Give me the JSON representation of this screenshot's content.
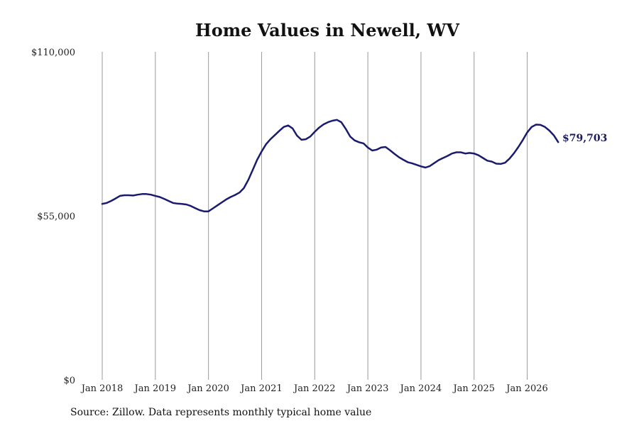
{
  "chart_data": {
    "type": "line",
    "title": "Home Values in Newell, WV",
    "xlabel": "",
    "ylabel": "",
    "ylim": [
      0,
      110000
    ],
    "y_ticks": [
      {
        "value": 0,
        "label": "$0"
      },
      {
        "value": 55000,
        "label": "$55,000"
      },
      {
        "value": 110000,
        "label": "$110,000"
      }
    ],
    "x_ticks": [
      "Jan 2018",
      "Jan 2019",
      "Jan 2020",
      "Jan 2021",
      "Jan 2022",
      "Jan 2023",
      "Jan 2024",
      "Jan 2025",
      "Jan 2026"
    ],
    "x_start": "2018-01",
    "grid": "vertical",
    "line_color": "#1a1a6e",
    "series": [
      {
        "values": [
          59000,
          59300,
          60000,
          60800,
          61700,
          61900,
          61900,
          61800,
          62100,
          62300,
          62300,
          62100,
          61700,
          61300,
          60700,
          60000,
          59300,
          59100,
          59000,
          58800,
          58300,
          57600,
          56900,
          56500,
          56500,
          57500,
          58500,
          59500,
          60500,
          61300,
          62000,
          62800,
          64300,
          67100,
          70400,
          73800,
          76600,
          79000,
          80700,
          82100,
          83500,
          84800,
          85300,
          84300,
          81900,
          80500,
          80700,
          81600,
          83200,
          84600,
          85700,
          86400,
          86900,
          87200,
          86400,
          84200,
          81600,
          80300,
          79700,
          79300,
          77900,
          76900,
          77200,
          77900,
          78100,
          77000,
          75800,
          74700,
          73800,
          73000,
          72600,
          72100,
          71600,
          71200,
          71700,
          72700,
          73700,
          74400,
          75100,
          75900,
          76300,
          76300,
          75900,
          76100,
          75900,
          75300,
          74400,
          73500,
          73200,
          72500,
          72400,
          72800,
          74200,
          76000,
          78100,
          80400,
          83000,
          84800,
          85600,
          85500,
          84800,
          83600,
          82000,
          79703
        ]
      }
    ],
    "end_label": "$79,703"
  },
  "source_note": "Source: Zillow. Data represents monthly typical home value"
}
